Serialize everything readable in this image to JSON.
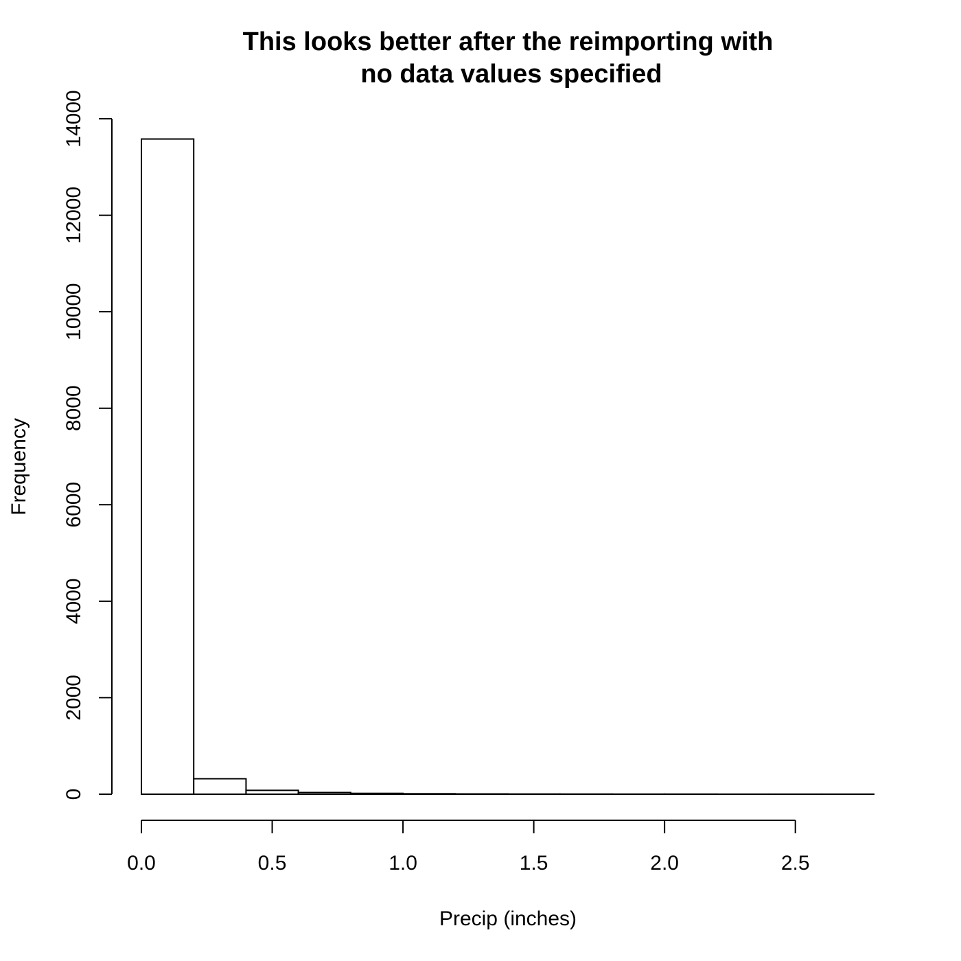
{
  "chart_data": {
    "type": "bar",
    "title": [
      "This looks better after the reimporting with",
      "no data values specified"
    ],
    "xlabel": "Precip (inches)",
    "ylabel": "Frequency",
    "bin_edges": [
      0.0,
      0.2,
      0.4,
      0.6,
      0.8,
      1.0,
      1.2,
      1.4,
      1.6,
      1.8,
      2.0,
      2.2,
      2.4,
      2.6,
      2.8
    ],
    "values": [
      13580,
      320,
      80,
      35,
      18,
      10,
      6,
      4,
      3,
      2,
      2,
      1,
      1,
      1
    ],
    "xlim": [
      0,
      2.8
    ],
    "ylim": [
      0,
      14000
    ],
    "x_ticks": [
      0.0,
      0.5,
      1.0,
      1.5,
      2.0,
      2.5
    ],
    "x_tick_labels": [
      "0.0",
      "0.5",
      "1.0",
      "1.5",
      "2.0",
      "2.5"
    ],
    "y_ticks": [
      0,
      2000,
      4000,
      6000,
      8000,
      10000,
      12000,
      14000
    ],
    "y_tick_labels": [
      "0",
      "2000",
      "4000",
      "6000",
      "8000",
      "10000",
      "12000",
      "14000"
    ],
    "bar_fill": "#ffffff",
    "bar_stroke": "#000000",
    "grid": false,
    "legend": "none"
  }
}
